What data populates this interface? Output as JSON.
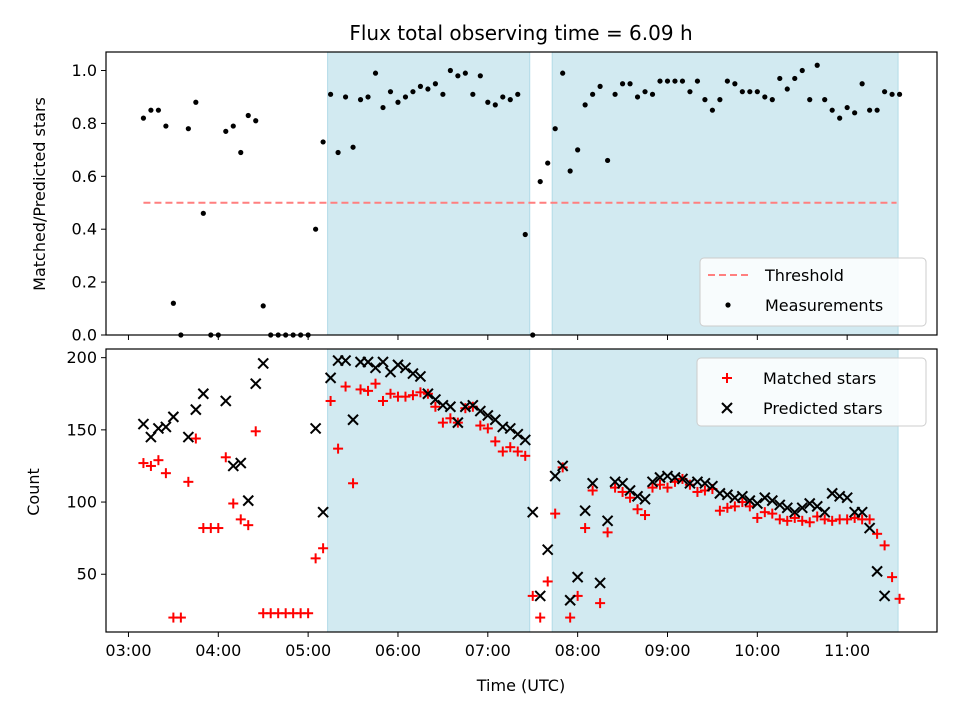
{
  "chart_data": [
    {
      "type": "scatter",
      "title": "Flux total observing time = 6.09 h",
      "xlabel": "",
      "ylabel": "Matched/Predicted stars",
      "xlim_hours": [
        2.75,
        12.0
      ],
      "ylim": [
        0,
        1.07
      ],
      "yticks": [
        0.0,
        0.2,
        0.4,
        0.6,
        0.8,
        1.0
      ],
      "ytick_labels": [
        "0.0",
        "0.2",
        "0.4",
        "0.6",
        "0.8",
        "1.0"
      ],
      "shaded_intervals": [
        [
          "05:13",
          "07:28"
        ],
        [
          "07:43",
          "11:34"
        ]
      ],
      "shade_color": "#add8e6",
      "threshold": {
        "name": "Threshold",
        "value": 0.5,
        "x_range": [
          "03:10",
          "11:33"
        ],
        "color": "#ff7f7f"
      },
      "series": [
        {
          "name": "Measurements",
          "marker": "dot",
          "color": "#000000",
          "x": [
            "03:10",
            "03:15",
            "03:20",
            "03:25",
            "03:30",
            "03:35",
            "03:40",
            "03:45",
            "03:50",
            "03:55",
            "04:00",
            "04:05",
            "04:10",
            "04:15",
            "04:20",
            "04:25",
            "04:30",
            "04:35",
            "04:40",
            "04:45",
            "04:50",
            "04:55",
            "05:00",
            "05:05",
            "05:10",
            "05:15",
            "05:20",
            "05:25",
            "05:30",
            "05:35",
            "05:40",
            "05:45",
            "05:50",
            "05:55",
            "06:00",
            "06:05",
            "06:10",
            "06:15",
            "06:20",
            "06:25",
            "06:30",
            "06:35",
            "06:40",
            "06:45",
            "06:50",
            "06:55",
            "07:00",
            "07:05",
            "07:10",
            "07:15",
            "07:20",
            "07:25",
            "07:30",
            "07:35",
            "07:40",
            "07:45",
            "07:50",
            "07:55",
            "08:00",
            "08:05",
            "08:10",
            "08:15",
            "08:20",
            "08:25",
            "08:30",
            "08:35",
            "08:40",
            "08:45",
            "08:50",
            "08:55",
            "09:00",
            "09:05",
            "09:10",
            "09:15",
            "09:20",
            "09:25",
            "09:30",
            "09:35",
            "09:40",
            "09:45",
            "09:50",
            "09:55",
            "10:00",
            "10:05",
            "10:10",
            "10:15",
            "10:20",
            "10:25",
            "10:30",
            "10:35",
            "10:40",
            "10:45",
            "10:50",
            "10:55",
            "11:00",
            "11:05",
            "11:10",
            "11:15",
            "11:20",
            "11:25",
            "11:30",
            "11:35"
          ],
          "y": [
            0.82,
            0.85,
            0.85,
            0.79,
            0.12,
            0.0,
            0.78,
            0.88,
            0.46,
            0.0,
            0.0,
            0.77,
            0.79,
            0.69,
            0.83,
            0.81,
            0.11,
            0.0,
            0.0,
            0.0,
            0.0,
            0.0,
            0.0,
            0.4,
            0.73,
            0.91,
            0.69,
            0.9,
            0.71,
            0.89,
            0.9,
            0.99,
            0.86,
            0.92,
            0.88,
            0.9,
            0.92,
            0.94,
            0.93,
            0.95,
            0.91,
            1.0,
            0.98,
            0.99,
            0.91,
            0.98,
            0.88,
            0.87,
            0.9,
            0.89,
            0.91,
            0.38,
            0.0,
            0.58,
            0.65,
            0.78,
            0.99,
            0.62,
            0.7,
            0.87,
            0.91,
            0.94,
            0.66,
            0.91,
            0.95,
            0.95,
            0.9,
            0.92,
            0.91,
            0.96,
            0.96,
            0.96,
            0.96,
            0.92,
            0.96,
            0.89,
            0.85,
            0.89,
            0.96,
            0.95,
            0.92,
            0.92,
            0.92,
            0.9,
            0.89,
            0.97,
            0.93,
            0.97,
            1.0,
            0.89,
            1.02,
            0.89,
            0.85,
            0.82,
            0.86,
            0.84,
            0.95,
            0.85,
            0.85,
            0.92,
            0.91,
            0.91
          ]
        }
      ],
      "legend": {
        "position": "bottom-right",
        "entries": [
          "Threshold",
          "Measurements"
        ]
      }
    },
    {
      "type": "scatter",
      "title": "",
      "xlabel": "Time (UTC)",
      "ylabel": "Count",
      "xlim_hours": [
        2.75,
        12.0
      ],
      "ylim": [
        10,
        206
      ],
      "yticks": [
        50,
        100,
        150,
        200
      ],
      "ytick_labels": [
        "50",
        "100",
        "150",
        "200"
      ],
      "xticks": [
        "03:00",
        "04:00",
        "05:00",
        "06:00",
        "07:00",
        "08:00",
        "09:00",
        "10:00",
        "11:00"
      ],
      "shaded_intervals": [
        [
          "05:13",
          "07:28"
        ],
        [
          "07:43",
          "11:34"
        ]
      ],
      "shade_color": "#add8e6",
      "x": [
        "03:10",
        "03:15",
        "03:20",
        "03:25",
        "03:30",
        "03:35",
        "03:40",
        "03:45",
        "03:50",
        "03:55",
        "04:00",
        "04:05",
        "04:10",
        "04:15",
        "04:20",
        "04:25",
        "04:30",
        "04:35",
        "04:40",
        "04:45",
        "04:50",
        "04:55",
        "05:00",
        "05:05",
        "05:10",
        "05:15",
        "05:20",
        "05:25",
        "05:30",
        "05:35",
        "05:40",
        "05:45",
        "05:50",
        "05:55",
        "06:00",
        "06:05",
        "06:10",
        "06:15",
        "06:20",
        "06:25",
        "06:30",
        "06:35",
        "06:40",
        "06:45",
        "06:50",
        "06:55",
        "07:00",
        "07:05",
        "07:10",
        "07:15",
        "07:20",
        "07:25",
        "07:30",
        "07:35",
        "07:40",
        "07:45",
        "07:50",
        "07:55",
        "08:00",
        "08:05",
        "08:10",
        "08:15",
        "08:20",
        "08:25",
        "08:30",
        "08:35",
        "08:40",
        "08:45",
        "08:50",
        "08:55",
        "09:00",
        "09:05",
        "09:10",
        "09:15",
        "09:20",
        "09:25",
        "09:30",
        "09:35",
        "09:40",
        "09:45",
        "09:50",
        "09:55",
        "10:00",
        "10:05",
        "10:10",
        "10:15",
        "10:20",
        "10:25",
        "10:30",
        "10:35",
        "10:40",
        "10:45",
        "10:50",
        "10:55",
        "11:00",
        "11:05",
        "11:10",
        "11:15",
        "11:20",
        "11:25",
        "11:30",
        "11:35"
      ],
      "series": [
        {
          "name": "Matched stars",
          "marker": "plus",
          "color": "#ff0000",
          "values": [
            127,
            125,
            129,
            120,
            20,
            20,
            114,
            144,
            82,
            82,
            82,
            131,
            99,
            88,
            84,
            149,
            23,
            23,
            23,
            23,
            23,
            23,
            23,
            61,
            68,
            170,
            137,
            180,
            113,
            178,
            177,
            182,
            170,
            175,
            173,
            173,
            174,
            176,
            175,
            166,
            155,
            158,
            155,
            165,
            166,
            153,
            151,
            142,
            135,
            138,
            135,
            132,
            35,
            20,
            45,
            92,
            124,
            20,
            35,
            82,
            108,
            30,
            79,
            110,
            107,
            103,
            95,
            91,
            110,
            112,
            110,
            114,
            116,
            112,
            107,
            108,
            109,
            94,
            96,
            97,
            100,
            97,
            89,
            93,
            92,
            88,
            87,
            89,
            87,
            86,
            90,
            88,
            87,
            88,
            88,
            89,
            88,
            88,
            78,
            70,
            48,
            33
          ],
          "x_index_start": 0
        },
        {
          "name": "Predicted stars",
          "marker": "x",
          "color": "#000000",
          "values": [
            154,
            145,
            151,
            152,
            159,
            null,
            145,
            164,
            175,
            null,
            null,
            170,
            125,
            127,
            101,
            182,
            196,
            null,
            null,
            null,
            null,
            null,
            null,
            151,
            93,
            186,
            198,
            198,
            157,
            197,
            197,
            193,
            197,
            190,
            195,
            193,
            189,
            187,
            175,
            171,
            167,
            166,
            155,
            166,
            167,
            163,
            160,
            157,
            152,
            151,
            147,
            143,
            93,
            35,
            67,
            118,
            125,
            32,
            48,
            94,
            113,
            44,
            87,
            114,
            113,
            108,
            104,
            102,
            114,
            117,
            118,
            117,
            116,
            113,
            114,
            113,
            111,
            106,
            105,
            103,
            104,
            101,
            99,
            103,
            101,
            98,
            96,
            93,
            96,
            99,
            97,
            93,
            106,
            104,
            103,
            93,
            93,
            82,
            52,
            35,
            null,
            null
          ],
          "x_index_start": 0
        }
      ],
      "legend": {
        "position": "top-right",
        "entries": [
          "Matched stars",
          "Predicted stars"
        ]
      }
    }
  ]
}
